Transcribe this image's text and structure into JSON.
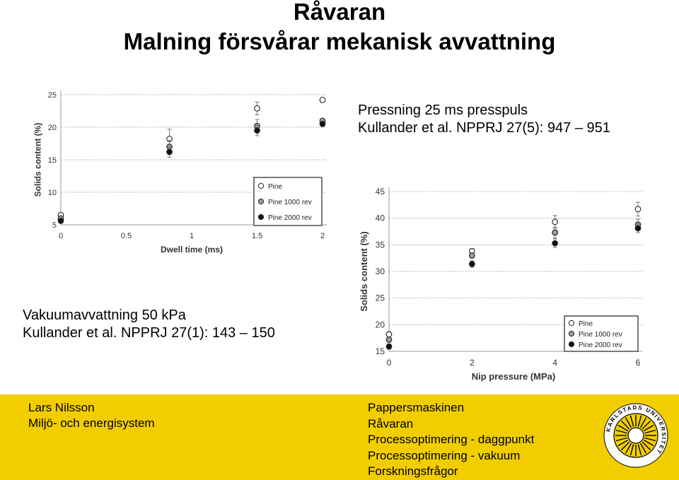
{
  "slide": {
    "title": "Råvaran",
    "subtitle": "Malning försvårar mekanisk avvattning"
  },
  "captions": {
    "pressing": [
      "Pressning 25 ms presspuls",
      "Kullander et al. NPPRJ 27(5): 947 – 951"
    ],
    "vacuum": [
      "Vakuumavvattning 50 kPa",
      "Kullander et al. NPPRJ 27(1): 143 – 150"
    ]
  },
  "chart_data": [
    {
      "type": "scatter",
      "xlabel": "Dwell time (ms)",
      "ylabel": "Solids content (%)",
      "xlim": [
        0,
        2
      ],
      "ylim": [
        5,
        25
      ],
      "xticks": [
        "0",
        "0.5",
        "1",
        "1.5",
        "2"
      ],
      "yticks": [
        "5",
        "10",
        "15",
        "20",
        "25"
      ],
      "grid": true,
      "legend_position": "bottom-right",
      "series": [
        {
          "name": "Pine",
          "marker": "open",
          "color": "#555555",
          "x": [
            0,
            0.83,
            1.5,
            2
          ],
          "y": [
            6.5,
            18.2,
            22.9,
            24.2
          ],
          "err": [
            0.3,
            1.5,
            1.0,
            0.3
          ]
        },
        {
          "name": "Pine 1000 rev",
          "marker": "grey",
          "color": "#8a8a8a",
          "x": [
            0,
            0.83,
            1.5,
            2
          ],
          "y": [
            6.0,
            17.0,
            20.2,
            21.0
          ],
          "err": [
            0.3,
            1.0,
            1.0,
            0.3
          ]
        },
        {
          "name": "Pine 2000 rev",
          "marker": "filled",
          "color": "#111111",
          "x": [
            0,
            0.83,
            1.5,
            2
          ],
          "y": [
            5.6,
            16.2,
            19.5,
            20.5
          ],
          "err": [
            0.3,
            0.8,
            0.8,
            0.3
          ]
        }
      ]
    },
    {
      "type": "scatter",
      "xlabel": "Nip pressure (MPa)",
      "ylabel": "Solids content (%)",
      "xlim": [
        0,
        6
      ],
      "ylim": [
        15,
        45
      ],
      "xticks": [
        "0",
        "2",
        "4",
        "6"
      ],
      "yticks": [
        "15",
        "20",
        "25",
        "30",
        "35",
        "40",
        "45"
      ],
      "grid": true,
      "legend_position": "bottom-right",
      "series": [
        {
          "name": "Pine",
          "marker": "open",
          "color": "#555555",
          "x": [
            0,
            2,
            4,
            6
          ],
          "y": [
            18.2,
            33.8,
            39.3,
            41.7
          ],
          "err": [
            0.5,
            0.5,
            1.2,
            1.3
          ]
        },
        {
          "name": "Pine 1000 rev",
          "marker": "grey",
          "color": "#8a8a8a",
          "x": [
            0,
            2,
            4,
            6
          ],
          "y": [
            17.2,
            33.0,
            37.3,
            38.8
          ],
          "err": [
            0.5,
            0.5,
            1.0,
            1.0
          ]
        },
        {
          "name": "Pine 2000 rev",
          "marker": "filled",
          "color": "#111111",
          "x": [
            0,
            2,
            4,
            6
          ],
          "y": [
            15.9,
            31.4,
            35.3,
            38.1
          ],
          "err": [
            0.5,
            0.6,
            0.8,
            0.8
          ]
        }
      ]
    }
  ],
  "footer": {
    "bg_color": "#f2cd00",
    "left": [
      "Lars Nilsson",
      "Miljö- och energisystem"
    ],
    "right": [
      "Pappersmaskinen",
      "Råvaran",
      "Processoptimering - daggpunkt",
      "Processoptimering - vakuum",
      "Forskningsfrågor"
    ],
    "seal_text": "KARLSTADS UNIVERSITET",
    "seal_icon": "sun-emblem-icon"
  }
}
